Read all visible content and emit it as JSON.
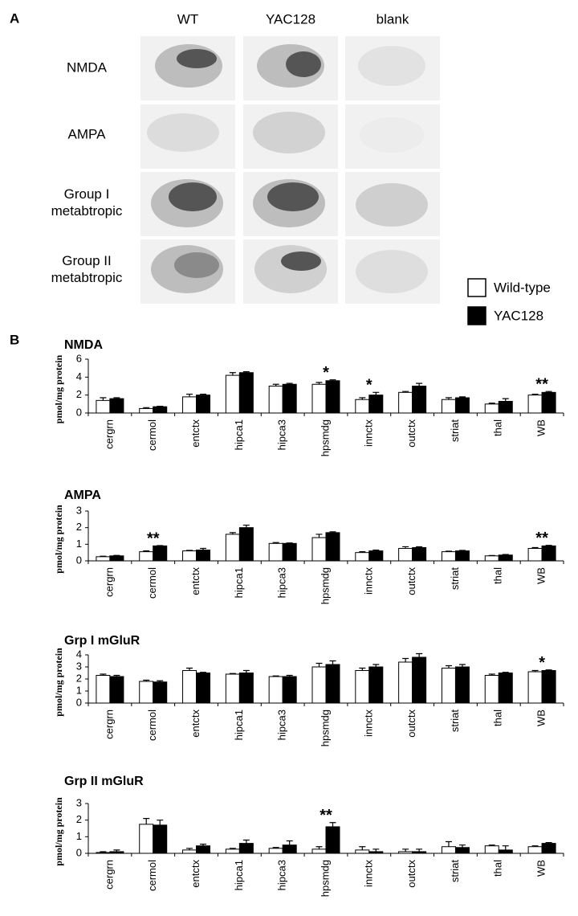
{
  "panel_a": {
    "label": "A",
    "columns": [
      "WT",
      "YAC128",
      "blank"
    ],
    "rows": [
      [
        "NMDA"
      ],
      [
        "AMPA"
      ],
      [
        "Group I",
        "metabtropic"
      ],
      [
        "Group II",
        "metabtropic"
      ]
    ]
  },
  "panel_b_label": "B",
  "chart_data": [
    {
      "type": "bar",
      "title": "NMDA",
      "y_label": "pmol/mg protein",
      "categories": [
        "cergrn",
        "cermol",
        "entctx",
        "hipca1",
        "hipca3",
        "hpsmdg",
        "innctx",
        "outctx",
        "striat",
        "thal",
        "WB"
      ],
      "series": [
        {
          "name": "Wild-type",
          "color": "#ffffff",
          "values": [
            1.4,
            0.5,
            1.8,
            4.2,
            3.0,
            3.2,
            1.5,
            2.3,
            1.5,
            1.0,
            2.0
          ],
          "errors": [
            0.3,
            0.1,
            0.3,
            0.3,
            0.2,
            0.2,
            0.2,
            0.1,
            0.2,
            0.1,
            0.1
          ]
        },
        {
          "name": "YAC128",
          "color": "#000000",
          "values": [
            1.6,
            0.7,
            2.0,
            4.5,
            3.2,
            3.6,
            2.0,
            3.0,
            1.7,
            1.3,
            2.3
          ],
          "errors": [
            0.1,
            0.05,
            0.1,
            0.1,
            0.1,
            0.1,
            0.3,
            0.3,
            0.1,
            0.3,
            0.1
          ]
        }
      ],
      "annotations": [
        null,
        null,
        null,
        null,
        null,
        "*",
        "*",
        null,
        null,
        null,
        "**"
      ],
      "ylim": [
        0,
        6
      ],
      "yticks": [
        0,
        2,
        4,
        6
      ]
    },
    {
      "type": "bar",
      "title": "AMPA",
      "y_label": "pmol/mg protein",
      "categories": [
        "cergrn",
        "cermol",
        "entctx",
        "hipca1",
        "hipca3",
        "hpsmdg",
        "innctx",
        "outctx",
        "striat",
        "thal",
        "WB"
      ],
      "series": [
        {
          "color": "#ffffff",
          "values": [
            0.25,
            0.55,
            0.6,
            1.6,
            1.05,
            1.4,
            0.5,
            0.75,
            0.55,
            0.3,
            0.75
          ],
          "errors": [
            0.03,
            0.05,
            0.03,
            0.1,
            0.05,
            0.2,
            0.05,
            0.1,
            0.03,
            0.02,
            0.05
          ]
        },
        {
          "color": "#000000",
          "values": [
            0.3,
            0.9,
            0.65,
            2.0,
            1.05,
            1.7,
            0.6,
            0.8,
            0.6,
            0.35,
            0.9
          ],
          "errors": [
            0.03,
            0.02,
            0.1,
            0.15,
            0.03,
            0.05,
            0.05,
            0.05,
            0.03,
            0.03,
            0.03
          ]
        }
      ],
      "annotations": [
        null,
        "**",
        null,
        null,
        null,
        null,
        null,
        null,
        null,
        null,
        "**"
      ],
      "ylim": [
        0,
        3
      ],
      "yticks": [
        0,
        1,
        2,
        3
      ]
    },
    {
      "type": "bar",
      "title": "Grp I mGluR",
      "y_label": "pmol/mg protein",
      "categories": [
        "cergrn",
        "cermol",
        "entctx",
        "hipca1",
        "hipca3",
        "hpsmdg",
        "innctx",
        "outctx",
        "striat",
        "thal",
        "WB"
      ],
      "series": [
        {
          "color": "#ffffff",
          "values": [
            2.3,
            1.8,
            2.7,
            2.4,
            2.2,
            3.0,
            2.7,
            3.4,
            2.9,
            2.3,
            2.6
          ],
          "errors": [
            0.1,
            0.1,
            0.2,
            0.05,
            0.05,
            0.3,
            0.2,
            0.3,
            0.2,
            0.1,
            0.1
          ]
        },
        {
          "color": "#000000",
          "values": [
            2.2,
            1.75,
            2.5,
            2.5,
            2.2,
            3.2,
            3.0,
            3.8,
            3.0,
            2.5,
            2.7
          ],
          "errors": [
            0.1,
            0.1,
            0.05,
            0.2,
            0.1,
            0.3,
            0.2,
            0.3,
            0.2,
            0.05,
            0.05
          ]
        }
      ],
      "annotations": [
        null,
        null,
        null,
        null,
        null,
        null,
        null,
        null,
        null,
        null,
        "*"
      ],
      "ylim": [
        0,
        4
      ],
      "yticks": [
        0,
        1,
        2,
        3,
        4
      ]
    },
    {
      "type": "bar",
      "title": "Grp II mGluR",
      "y_label": "pmol/mg protein",
      "categories": [
        "cergrn",
        "cermol",
        "entctx",
        "hipca1",
        "hipca3",
        "hpsmdg",
        "innctx",
        "outctx",
        "striat",
        "thal",
        "WB"
      ],
      "series": [
        {
          "color": "#ffffff",
          "values": [
            0.05,
            1.75,
            0.2,
            0.25,
            0.3,
            0.25,
            0.2,
            0.1,
            0.4,
            0.45,
            0.4
          ],
          "errors": [
            0.05,
            0.35,
            0.1,
            0.05,
            0.05,
            0.15,
            0.2,
            0.15,
            0.3,
            0.05,
            0.05
          ]
        },
        {
          "color": "#000000",
          "values": [
            0.1,
            1.7,
            0.45,
            0.6,
            0.5,
            1.6,
            0.1,
            0.1,
            0.35,
            0.2,
            0.6
          ],
          "errors": [
            0.1,
            0.3,
            0.1,
            0.2,
            0.25,
            0.25,
            0.15,
            0.15,
            0.15,
            0.25,
            0.05
          ]
        }
      ],
      "annotations": [
        null,
        null,
        null,
        null,
        null,
        "**",
        null,
        null,
        null,
        null,
        null
      ],
      "ylim": [
        0,
        3
      ],
      "yticks": [
        0,
        1,
        2,
        3
      ]
    }
  ]
}
